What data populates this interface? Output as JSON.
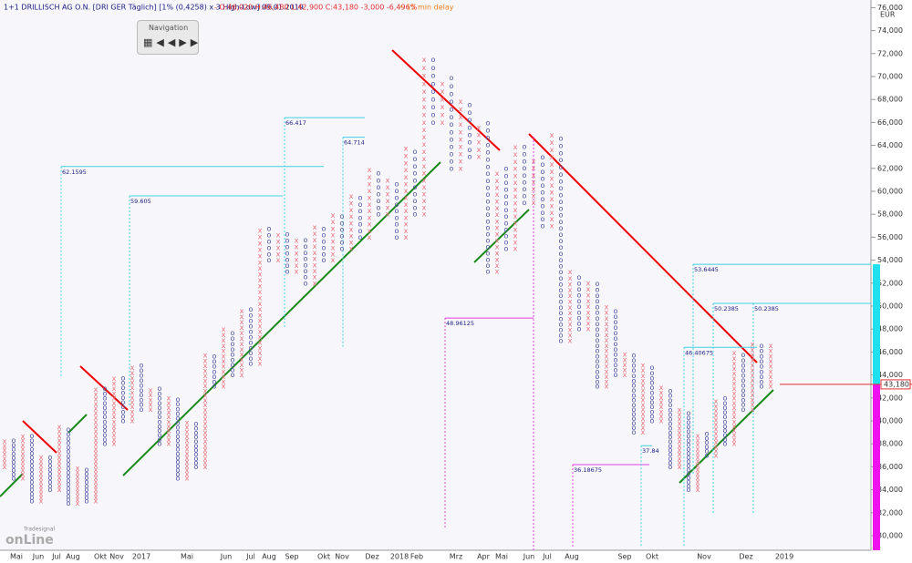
{
  "chart_data": {
    "type": "point-figure",
    "header": {
      "instrument": "1+1 DRILLISCH AG O.N. [DRI GER Täglich] [1% (0,4258) x 3 High-Low] 09.01.2019",
      "quote": "- O:46,020 H:46,480 L:42,900 C:43,180 -3,000 -6,496%",
      "delay": "• 15 min delay"
    },
    "navigation": "Navigation",
    "logo": "onLine",
    "logo_sub": "Tradesignal",
    "unit": "EUR",
    "box_percent": 1,
    "x_color": "#e8707c",
    "o_color": "#4b4f9e",
    "values": [
      36,
      38.5,
      35,
      39,
      33,
      37,
      34,
      39.5,
      32.8,
      36,
      33,
      43,
      38,
      44,
      40,
      45,
      41,
      43,
      38,
      42,
      35,
      40,
      36,
      46,
      43,
      48,
      44,
      50,
      45,
      57,
      54,
      56.5,
      53,
      56,
      52,
      57,
      54,
      58,
      55,
      60,
      56,
      62,
      58,
      61,
      56,
      64,
      58,
      72,
      66,
      70,
      62,
      68,
      63,
      66,
      53,
      62,
      55,
      64,
      59,
      63,
      57,
      65,
      47,
      53,
      48,
      52,
      43,
      50,
      44,
      46,
      39,
      45,
      40,
      43,
      36,
      41,
      34,
      39,
      37,
      42,
      38,
      46,
      41,
      47,
      43,
      47
    ],
    "ylim": [
      29,
      77
    ],
    "yticks": [
      {
        "value": 30,
        "label": "30,000"
      },
      {
        "value": 32,
        "label": "32,000"
      },
      {
        "value": 34,
        "label": "34,000"
      },
      {
        "value": 36,
        "label": "36,000"
      },
      {
        "value": 38,
        "label": "38,000"
      },
      {
        "value": 40,
        "label": "40,000"
      },
      {
        "value": 42,
        "label": "42,000"
      },
      {
        "value": 44,
        "label": "44,000"
      },
      {
        "value": 46,
        "label": "46,000"
      },
      {
        "value": 48,
        "label": "48,000"
      },
      {
        "value": 50,
        "label": "50,000"
      },
      {
        "value": 52,
        "label": "52,000"
      },
      {
        "value": 54,
        "label": "54,000"
      },
      {
        "value": 56,
        "label": "56,000"
      },
      {
        "value": 58,
        "label": "58,000"
      },
      {
        "value": 60,
        "label": "60,000"
      },
      {
        "value": 62,
        "label": "62,000"
      },
      {
        "value": 64,
        "label": "64,000"
      },
      {
        "value": 66,
        "label": "66,000"
      },
      {
        "value": 68,
        "label": "68,000"
      },
      {
        "value": 70,
        "label": "70,000"
      },
      {
        "value": 72,
        "label": "72,000"
      },
      {
        "value": 74,
        "label": "74,000"
      },
      {
        "value": 76,
        "label": "76,000"
      }
    ],
    "last_price": {
      "value": 43.18,
      "label": "43,180"
    },
    "x_labels": [
      "Mai",
      "Jun",
      "Jul",
      "Aug",
      "Okt",
      "Nov",
      "2017",
      "Mai",
      "Jun",
      "Jul",
      "Aug",
      "Sep",
      "Okt",
      "Nov",
      "Dez",
      "2018",
      "Feb",
      "Mrz",
      "Apr",
      "Mai",
      "Jun",
      "Jul",
      "Aug",
      "Sep",
      "Okt",
      "Nov",
      "Dez",
      "2019"
    ],
    "targets": [
      62.1595,
      59.605,
      66.417,
      64.714,
      48.96125,
      36.18675,
      37.84,
      46.40675,
      50.2385,
      50.2385,
      53.6445
    ]
  }
}
